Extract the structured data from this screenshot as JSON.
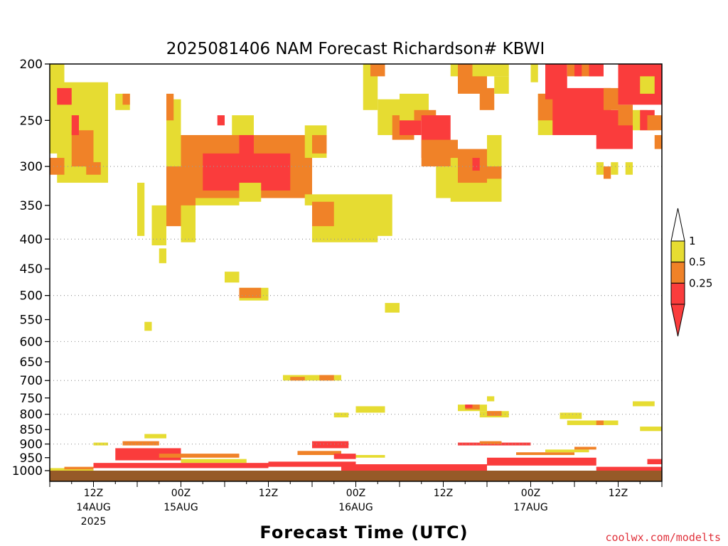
{
  "chart_data": {
    "type": "heatmap",
    "title": "2025081406 NAM Forecast Richardson# KBWI",
    "xlabel": "Forecast Time (UTC)",
    "ylabel": "",
    "y_ticks": [
      "200",
      "250",
      "300",
      "350",
      "400",
      "450",
      "500",
      "550",
      "600",
      "650",
      "700",
      "750",
      "800",
      "850",
      "900",
      "950",
      "1000"
    ],
    "y_tick_values": [
      200,
      250,
      300,
      350,
      400,
      450,
      500,
      550,
      600,
      650,
      700,
      750,
      800,
      850,
      900,
      950,
      1000
    ],
    "y_scale": "log-pressure",
    "ylim": [
      1000,
      200
    ],
    "dotted_gridlines_hpa": [
      300,
      400,
      500,
      600,
      700,
      800,
      900
    ],
    "x_ticks": [
      {
        "hour": 6,
        "line1": "12Z",
        "line2": "14AUG",
        "line3": "2025"
      },
      {
        "hour": 18,
        "line1": "00Z",
        "line2": "15AUG",
        "line3": ""
      },
      {
        "hour": 30,
        "line1": "12Z",
        "line2": "",
        "line3": ""
      },
      {
        "hour": 42,
        "line1": "00Z",
        "line2": "16AUG",
        "line3": ""
      },
      {
        "hour": 54,
        "line1": "12Z",
        "line2": "",
        "line3": ""
      },
      {
        "hour": 66,
        "line1": "00Z",
        "line2": "17AUG",
        "line3": ""
      },
      {
        "hour": 78,
        "line1": "12Z",
        "line2": "",
        "line3": ""
      }
    ],
    "xlim_hours": [
      0,
      84
    ],
    "colorbar": {
      "ticks": [
        "1",
        "0.5",
        "0.25"
      ],
      "bins": [
        {
          "range": "0.5-1",
          "color": "#e6dc32"
        },
        {
          "range": "0.25-0.5",
          "color": "#f08228"
        },
        {
          "range": "<0.25",
          "color": "#fa3c3c"
        }
      ],
      "over_color": "#ffffff",
      "under_color": "#fa3c3c"
    },
    "ground_color": "#965a28",
    "regions": [
      {
        "cat": "Y",
        "t": [
          0,
          2
        ],
        "p": [
          285,
          200
        ],
        "note": "<1"
      },
      {
        "cat": "Y",
        "t": [
          1,
          8
        ],
        "p": [
          320,
          215
        ]
      },
      {
        "cat": "O",
        "t": [
          0,
          2
        ],
        "p": [
          310,
          290
        ]
      },
      {
        "cat": "O",
        "t": [
          3,
          6
        ],
        "p": [
          300,
          260
        ]
      },
      {
        "cat": "O",
        "t": [
          5,
          7
        ],
        "p": [
          310,
          295
        ]
      },
      {
        "cat": "R",
        "t": [
          1,
          3
        ],
        "p": [
          235,
          220
        ]
      },
      {
        "cat": "R",
        "t": [
          3,
          4
        ],
        "p": [
          265,
          245
        ]
      },
      {
        "cat": "Y",
        "t": [
          9,
          11
        ],
        "p": [
          240,
          225
        ]
      },
      {
        "cat": "O",
        "t": [
          10,
          11
        ],
        "p": [
          235,
          225
        ]
      },
      {
        "cat": "Y",
        "t": [
          12,
          13
        ],
        "p": [
          395,
          320
        ]
      },
      {
        "cat": "Y",
        "t": [
          14,
          16
        ],
        "p": [
          410,
          350
        ]
      },
      {
        "cat": "Y",
        "t": [
          15,
          16
        ],
        "p": [
          440,
          415
        ]
      },
      {
        "cat": "Y",
        "t": [
          16,
          26
        ],
        "p": [
          350,
          265
        ]
      },
      {
        "cat": "O",
        "t": [
          16,
          20
        ],
        "p": [
          380,
          300
        ]
      },
      {
        "cat": "Y",
        "t": [
          16,
          18
        ],
        "p": [
          270,
          230
        ]
      },
      {
        "cat": "O",
        "t": [
          16,
          17
        ],
        "p": [
          250,
          225
        ]
      },
      {
        "cat": "Y",
        "t": [
          18,
          20
        ],
        "p": [
          405,
          350
        ]
      },
      {
        "cat": "O",
        "t": [
          18,
          36
        ],
        "p": [
          340,
          265
        ]
      },
      {
        "cat": "R",
        "t": [
          21,
          33
        ],
        "p": [
          330,
          285
        ]
      },
      {
        "cat": "R",
        "t": [
          26,
          28
        ],
        "p": [
          290,
          265
        ]
      },
      {
        "cat": "R",
        "t": [
          23,
          24
        ],
        "p": [
          255,
          245
        ]
      },
      {
        "cat": "Y",
        "t": [
          25,
          28
        ],
        "p": [
          265,
          245
        ]
      },
      {
        "cat": "Y",
        "t": [
          26,
          29
        ],
        "p": [
          345,
          320
        ]
      },
      {
        "cat": "Y",
        "t": [
          35,
          38
        ],
        "p": [
          290,
          255
        ]
      },
      {
        "cat": "O",
        "t": [
          36,
          38
        ],
        "p": [
          285,
          265
        ]
      },
      {
        "cat": "Y",
        "t": [
          35,
          40
        ],
        "p": [
          350,
          335
        ]
      },
      {
        "cat": "Y",
        "t": [
          36,
          45
        ],
        "p": [
          405,
          340
        ]
      },
      {
        "cat": "O",
        "t": [
          36,
          39
        ],
        "p": [
          380,
          345
        ]
      },
      {
        "cat": "Y",
        "t": [
          40,
          47
        ],
        "p": [
          395,
          335
        ]
      },
      {
        "cat": "Y",
        "t": [
          43,
          45
        ],
        "p": [
          240,
          200
        ]
      },
      {
        "cat": "O",
        "t": [
          44,
          46
        ],
        "p": [
          210,
          200
        ]
      },
      {
        "cat": "Y",
        "t": [
          45,
          50
        ],
        "p": [
          265,
          230
        ]
      },
      {
        "cat": "O",
        "t": [
          47,
          50
        ],
        "p": [
          270,
          245
        ]
      },
      {
        "cat": "R",
        "t": [
          48,
          51
        ],
        "p": [
          265,
          245
        ]
      },
      {
        "cat": "Y",
        "t": [
          48,
          52
        ],
        "p": [
          250,
          225
        ]
      },
      {
        "cat": "O",
        "t": [
          50,
          53
        ],
        "p": [
          250,
          240
        ]
      },
      {
        "cat": "R",
        "t": [
          51,
          55
        ],
        "p": [
          290,
          245
        ]
      },
      {
        "cat": "O",
        "t": [
          51,
          56
        ],
        "p": [
          300,
          270
        ]
      },
      {
        "cat": "Y",
        "t": [
          53,
          56
        ],
        "p": [
          340,
          300
        ]
      },
      {
        "cat": "Y",
        "t": [
          55,
          62
        ],
        "p": [
          345,
          290
        ]
      },
      {
        "cat": "O",
        "t": [
          56,
          60
        ],
        "p": [
          320,
          280
        ]
      },
      {
        "cat": "R",
        "t": [
          58,
          59
        ],
        "p": [
          305,
          290
        ]
      },
      {
        "cat": "O",
        "t": [
          60,
          62
        ],
        "p": [
          315,
          290
        ]
      },
      {
        "cat": "Y",
        "t": [
          60,
          62
        ],
        "p": [
          300,
          265
        ]
      },
      {
        "cat": "Y",
        "t": [
          55,
          57
        ],
        "p": [
          210,
          200
        ]
      },
      {
        "cat": "O",
        "t": [
          56,
          60
        ],
        "p": [
          225,
          200
        ]
      },
      {
        "cat": "Y",
        "t": [
          58,
          63
        ],
        "p": [
          210,
          200
        ]
      },
      {
        "cat": "O",
        "t": [
          59,
          61
        ],
        "p": [
          240,
          220
        ]
      },
      {
        "cat": "Y",
        "t": [
          61,
          63
        ],
        "p": [
          225,
          210
        ]
      },
      {
        "cat": "Y",
        "t": [
          66,
          67
        ],
        "p": [
          215,
          200
        ]
      },
      {
        "cat": "Y",
        "t": [
          67,
          70
        ],
        "p": [
          265,
          225
        ]
      },
      {
        "cat": "O",
        "t": [
          67,
          70
        ],
        "p": [
          250,
          225
        ]
      },
      {
        "cat": "R",
        "t": [
          68,
          71
        ],
        "p": [
          230,
          200
        ]
      },
      {
        "cat": "R",
        "t": [
          69,
          77
        ],
        "p": [
          265,
          220
        ]
      },
      {
        "cat": "O",
        "t": [
          71,
          76
        ],
        "p": [
          210,
          200
        ]
      },
      {
        "cat": "R",
        "t": [
          72,
          73
        ],
        "p": [
          210,
          200
        ]
      },
      {
        "cat": "R",
        "t": [
          74,
          76
        ],
        "p": [
          210,
          200
        ]
      },
      {
        "cat": "R",
        "t": [
          75,
          80
        ],
        "p": [
          280,
          240
        ]
      },
      {
        "cat": "O",
        "t": [
          76,
          78
        ],
        "p": [
          240,
          220
        ]
      },
      {
        "cat": "O",
        "t": [
          78,
          80
        ],
        "p": [
          255,
          235
        ]
      },
      {
        "cat": "R",
        "t": [
          78,
          84
        ],
        "p": [
          235,
          200
        ]
      },
      {
        "cat": "Y",
        "t": [
          80,
          82
        ],
        "p": [
          260,
          240
        ]
      },
      {
        "cat": "R",
        "t": [
          81,
          83
        ],
        "p": [
          260,
          240
        ]
      },
      {
        "cat": "Y",
        "t": [
          81,
          83
        ],
        "p": [
          225,
          210
        ]
      },
      {
        "cat": "O",
        "t": [
          82,
          84
        ],
        "p": [
          260,
          245
        ]
      },
      {
        "cat": "O",
        "t": [
          83,
          84
        ],
        "p": [
          280,
          265
        ]
      },
      {
        "cat": "Y",
        "t": [
          75,
          76
        ],
        "p": [
          310,
          295
        ]
      },
      {
        "cat": "O",
        "t": [
          76,
          77
        ],
        "p": [
          315,
          300
        ]
      },
      {
        "cat": "Y",
        "t": [
          77,
          78
        ],
        "p": [
          310,
          295
        ]
      },
      {
        "cat": "Y",
        "t": [
          79,
          80
        ],
        "p": [
          310,
          295
        ]
      },
      {
        "cat": "Y",
        "t": [
          24,
          26
        ],
        "p": [
          475,
          455
        ]
      },
      {
        "cat": "Y",
        "t": [
          26,
          30
        ],
        "p": [
          510,
          485
        ]
      },
      {
        "cat": "O",
        "t": [
          26,
          29
        ],
        "p": [
          505,
          485
        ]
      },
      {
        "cat": "Y",
        "t": [
          46,
          48
        ],
        "p": [
          535,
          515
        ]
      },
      {
        "cat": "Y",
        "t": [
          13,
          14
        ],
        "p": [
          575,
          555
        ]
      },
      {
        "cat": "Y",
        "t": [
          32,
          40
        ],
        "p": [
          700,
          685
        ]
      },
      {
        "cat": "O",
        "t": [
          33,
          35
        ],
        "p": [
          700,
          690
        ]
      },
      {
        "cat": "O",
        "t": [
          37,
          39
        ],
        "p": [
          700,
          685
        ]
      },
      {
        "cat": "Y",
        "t": [
          39,
          41
        ],
        "p": [
          810,
          795
        ]
      },
      {
        "cat": "Y",
        "t": [
          42,
          46
        ],
        "p": [
          795,
          775
        ]
      },
      {
        "cat": "Y",
        "t": [
          56,
          60
        ],
        "p": [
          790,
          770
        ]
      },
      {
        "cat": "O",
        "t": [
          57,
          59
        ],
        "p": [
          785,
          770
        ]
      },
      {
        "cat": "R",
        "t": [
          57,
          58
        ],
        "p": [
          780,
          770
        ]
      },
      {
        "cat": "Y",
        "t": [
          59,
          63
        ],
        "p": [
          810,
          790
        ]
      },
      {
        "cat": "O",
        "t": [
          60,
          62
        ],
        "p": [
          805,
          790
        ]
      },
      {
        "cat": "Y",
        "t": [
          60,
          61
        ],
        "p": [
          760,
          745
        ]
      },
      {
        "cat": "Y",
        "t": [
          70,
          73
        ],
        "p": [
          815,
          795
        ]
      },
      {
        "cat": "Y",
        "t": [
          71,
          78
        ],
        "p": [
          835,
          820
        ]
      },
      {
        "cat": "O",
        "t": [
          75,
          76
        ],
        "p": [
          835,
          820
        ]
      },
      {
        "cat": "Y",
        "t": [
          80,
          83
        ],
        "p": [
          775,
          760
        ]
      },
      {
        "cat": "Y",
        "t": [
          81,
          84
        ],
        "p": [
          855,
          840
        ]
      },
      {
        "cat": "Y",
        "t": [
          6,
          8
        ],
        "p": [
          905,
          895
        ]
      },
      {
        "cat": "O",
        "t": [
          10,
          15
        ],
        "p": [
          905,
          890
        ]
      },
      {
        "cat": "Y",
        "t": [
          13,
          16
        ],
        "p": [
          880,
          865
        ]
      },
      {
        "cat": "R",
        "t": [
          9,
          18
        ],
        "p": [
          960,
          915
        ]
      },
      {
        "cat": "O",
        "t": [
          15,
          26
        ],
        "p": [
          950,
          935
        ]
      },
      {
        "cat": "Y",
        "t": [
          18,
          27
        ],
        "p": [
          970,
          955
        ]
      },
      {
        "cat": "R",
        "t": [
          6,
          30
        ],
        "p": [
          990,
          970
        ]
      },
      {
        "cat": "R",
        "t": [
          30,
          42
        ],
        "p": [
          985,
          965
        ]
      },
      {
        "cat": "O",
        "t": [
          34,
          40
        ],
        "p": [
          940,
          925
        ]
      },
      {
        "cat": "R",
        "t": [
          36,
          41
        ],
        "p": [
          915,
          890
        ]
      },
      {
        "cat": "R",
        "t": [
          39,
          42
        ],
        "p": [
          955,
          935
        ]
      },
      {
        "cat": "R",
        "t": [
          40,
          60
        ],
        "p": [
          1000,
          975
        ]
      },
      {
        "cat": "Y",
        "t": [
          42,
          46
        ],
        "p": [
          950,
          940
        ]
      },
      {
        "cat": "R",
        "t": [
          56,
          66
        ],
        "p": [
          905,
          895
        ]
      },
      {
        "cat": "O",
        "t": [
          59,
          62
        ],
        "p": [
          900,
          890
        ]
      },
      {
        "cat": "R",
        "t": [
          60,
          75
        ],
        "p": [
          980,
          950
        ]
      },
      {
        "cat": "O",
        "t": [
          64,
          72
        ],
        "p": [
          940,
          930
        ]
      },
      {
        "cat": "Y",
        "t": [
          68,
          74
        ],
        "p": [
          930,
          920
        ]
      },
      {
        "cat": "O",
        "t": [
          72,
          75
        ],
        "p": [
          920,
          910
        ]
      },
      {
        "cat": "R",
        "t": [
          75,
          84
        ],
        "p": [
          1000,
          985
        ]
      },
      {
        "cat": "R",
        "t": [
          82,
          84
        ],
        "p": [
          975,
          955
        ]
      },
      {
        "cat": "Y",
        "t": [
          0,
          6
        ],
        "p": [
          1000,
          990
        ]
      },
      {
        "cat": "O",
        "t": [
          2,
          6
        ],
        "p": [
          995,
          985
        ]
      }
    ]
  },
  "credit": "coolwx.com/modelts"
}
